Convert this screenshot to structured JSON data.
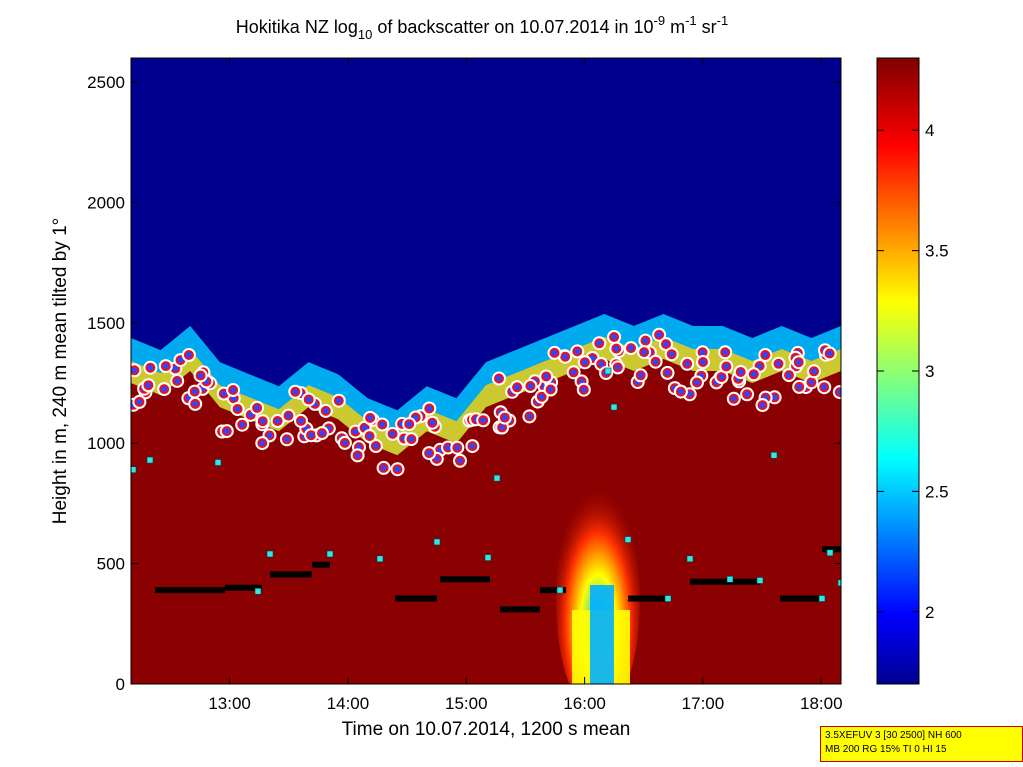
{
  "chart_data": {
    "type": "heatmap",
    "title_parts": [
      "Hokitika NZ log",
      "10",
      " of backscatter on 10.07.2014 in 10",
      "-9",
      " m",
      "-1",
      " sr",
      "-1"
    ],
    "xlabel": "Time on 10.07.2014, 1200 s mean",
    "ylabel": "Height in m, 240 m mean tilted by 1°",
    "xlim": [
      "12:10",
      "18:10"
    ],
    "ylim": [
      0,
      2600
    ],
    "x_ticks": [
      "13:00",
      "14:00",
      "15:00",
      "16:00",
      "17:00",
      "18:00"
    ],
    "y_ticks": [
      "0",
      "500",
      "1000",
      "1500",
      "2000",
      "2500"
    ],
    "colorbar": {
      "range": [
        1.7,
        4.3
      ],
      "ticks": [
        "2",
        "2.5",
        "3",
        "3.5",
        "4"
      ],
      "colormap": "jet"
    },
    "boundary_layer_top": {
      "x": [
        "12:10",
        "12:25",
        "12:40",
        "12:55",
        "13:10",
        "13:25",
        "13:40",
        "13:55",
        "14:10",
        "14:25",
        "14:40",
        "14:55",
        "15:10",
        "15:25",
        "15:40",
        "15:55",
        "16:10",
        "16:25",
        "16:40",
        "16:55",
        "17:10",
        "17:25",
        "17:40",
        "17:55",
        "18:10"
      ],
      "y": [
        1250,
        1200,
        1300,
        1150,
        1100,
        1050,
        1150,
        1100,
        1000,
        950,
        1050,
        1000,
        1150,
        1200,
        1250,
        1300,
        1350,
        1300,
        1350,
        1300,
        1300,
        1250,
        1300,
        1250,
        1300
      ]
    },
    "markers": {
      "cloud_layer_points": "red-filled white-ringed circles",
      "aerosol_layer_points": "black squares",
      "cyan_points": "cyan squares"
    }
  },
  "info_box": {
    "line1": "3.5XEFUV 3 [30 2500] NH 600",
    "line2": "MB 200 RG 15% TI 0 HI 15"
  }
}
